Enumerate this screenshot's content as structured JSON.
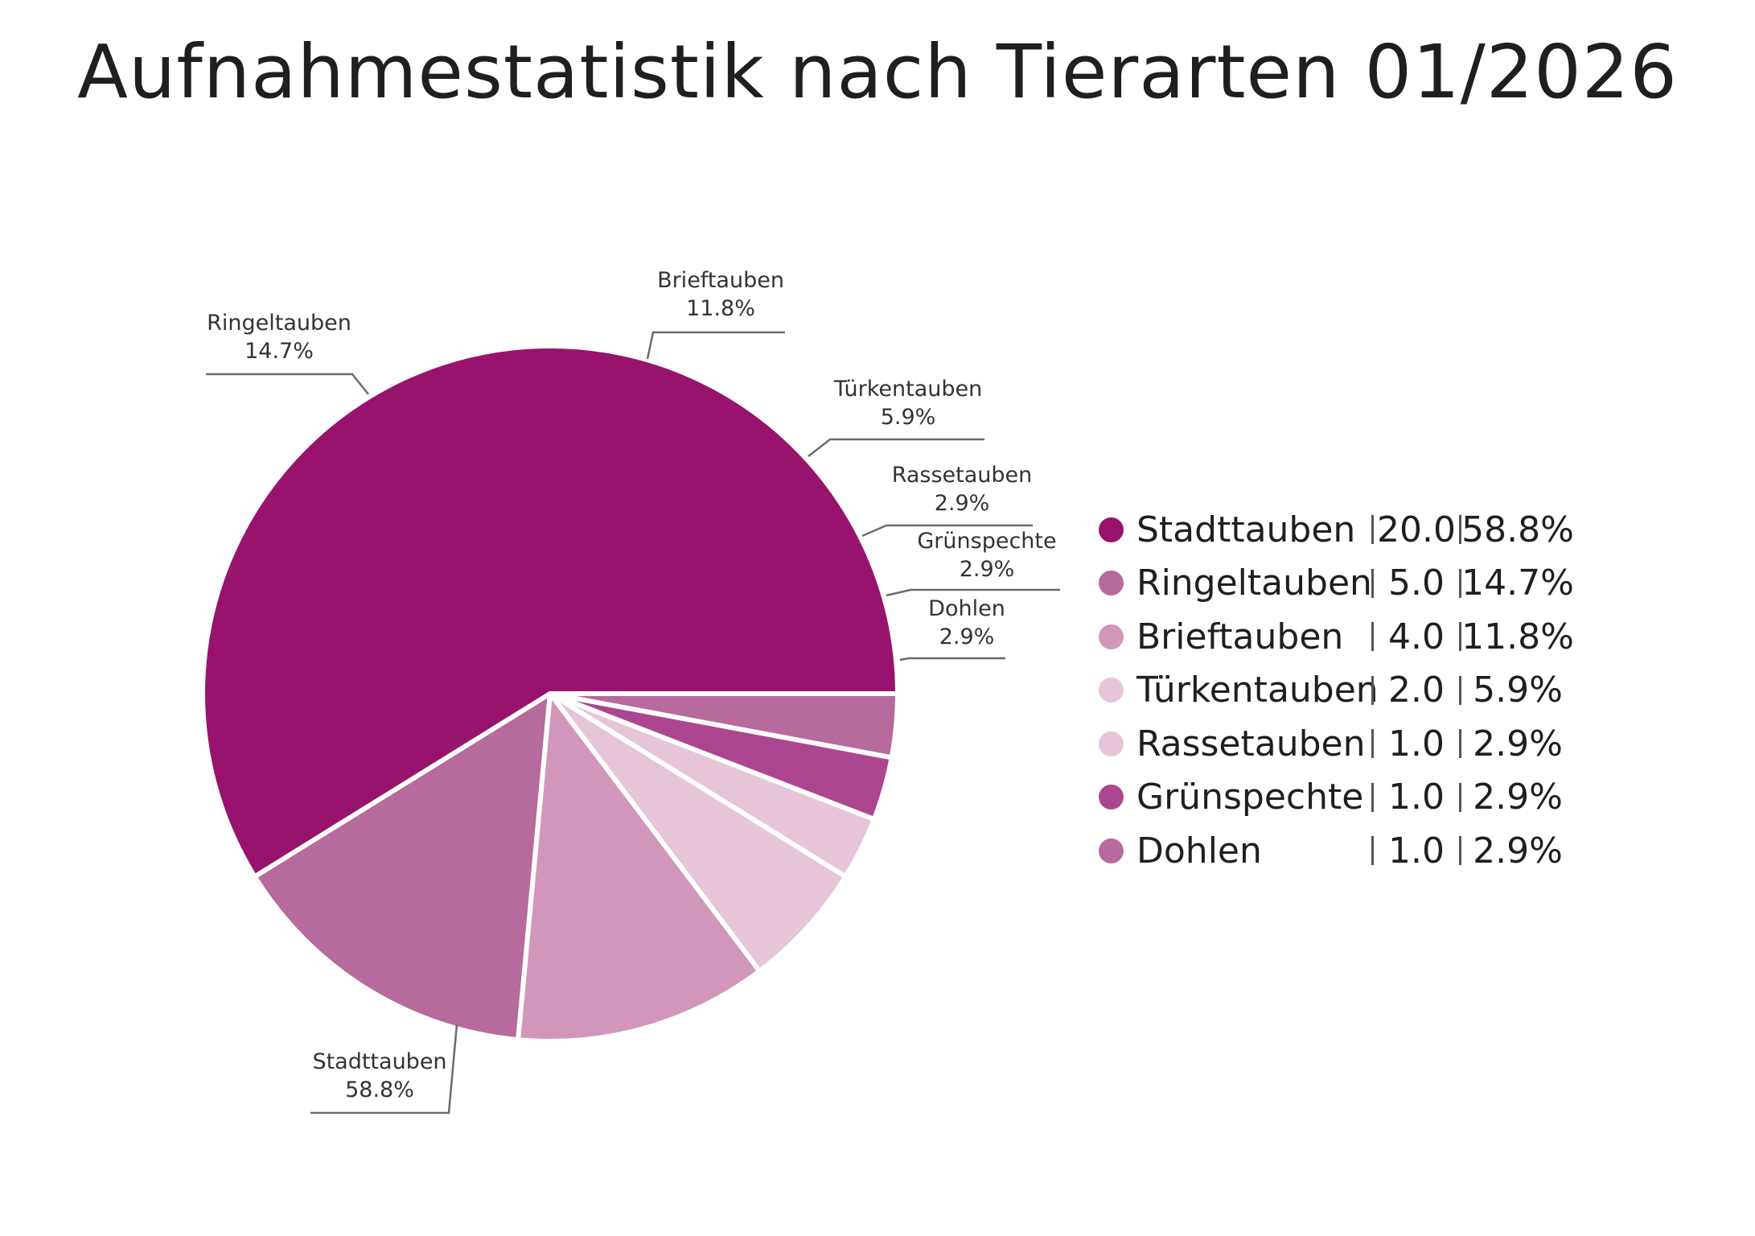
{
  "chart_data": {
    "type": "pie",
    "title": "Aufnahmestatistik nach Tierarten 01/2026",
    "categories": [
      "Stadttauben",
      "Ringeltauben",
      "Brieftauben",
      "Türkentauben",
      "Rassetauben",
      "Grünspechte",
      "Dohlen"
    ],
    "values": [
      20.0,
      5.0,
      4.0,
      2.0,
      1.0,
      1.0,
      1.0
    ],
    "value_labels": [
      "20.0",
      "5.0",
      "4.0",
      "2.0",
      "1.0",
      "1.0",
      "1.0"
    ],
    "percents": [
      "58.8%",
      "14.7%",
      "11.8%",
      "5.9%",
      "2.9%",
      "2.9%",
      "2.9%"
    ],
    "colors": [
      "#97136D",
      "#B76A9C",
      "#D296BB",
      "#E6C5D8",
      "#E7C5D9",
      "#AD4690",
      "#B76A9C"
    ],
    "legend_position": "right"
  }
}
